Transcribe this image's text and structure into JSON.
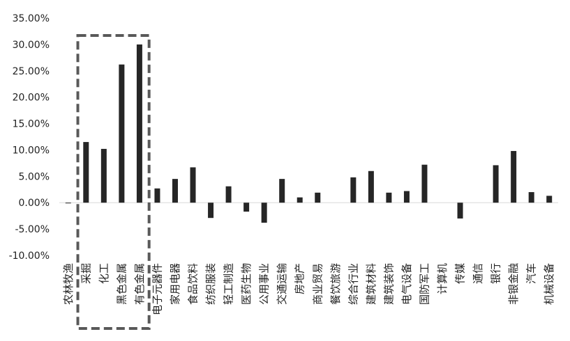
{
  "chart_data": {
    "type": "bar",
    "title": "",
    "xlabel": "",
    "ylabel": "",
    "ylim": [
      -0.1,
      0.35
    ],
    "ytick_values": [
      -0.1,
      -0.05,
      0.0,
      0.05,
      0.1,
      0.15,
      0.2,
      0.25,
      0.3,
      0.35
    ],
    "ytick_labels": [
      "-10.00%",
      "-5.00%",
      "0.00%",
      "5.00%",
      "10.00%",
      "15.00%",
      "20.00%",
      "25.00%",
      "30.00%",
      "35.00%"
    ],
    "grid": false,
    "legend": "none",
    "bar_color": "#262626",
    "highlight_box_color": "#595959",
    "highlight_categories": [
      "采掘",
      "化工",
      "黑色金属",
      "有色金属"
    ],
    "categories": [
      "农林牧渔",
      "采掘",
      "化工",
      "黑色金属",
      "有色金属",
      "电子元器件",
      "家用电器",
      "食品饮料",
      "纺织服装",
      "轻工制造",
      "医药生物",
      "公用事业",
      "交通运输",
      "房地产",
      "商业贸易",
      "餐饮旅游",
      "综合行业",
      "建筑材料",
      "建筑装饰",
      "电气设备",
      "国防军工",
      "计算机",
      "传媒",
      "通信",
      "银行",
      "非银金融",
      "汽车",
      "机械设备"
    ],
    "values": [
      -0.001,
      0.115,
      0.102,
      0.262,
      0.3,
      0.027,
      0.045,
      0.067,
      -0.029,
      0.031,
      -0.017,
      -0.038,
      0.045,
      0.01,
      0.019,
      0.0,
      0.048,
      0.06,
      0.019,
      0.022,
      0.072,
      0.0,
      -0.03,
      0.0,
      0.071,
      0.098,
      0.02,
      0.013
    ]
  }
}
